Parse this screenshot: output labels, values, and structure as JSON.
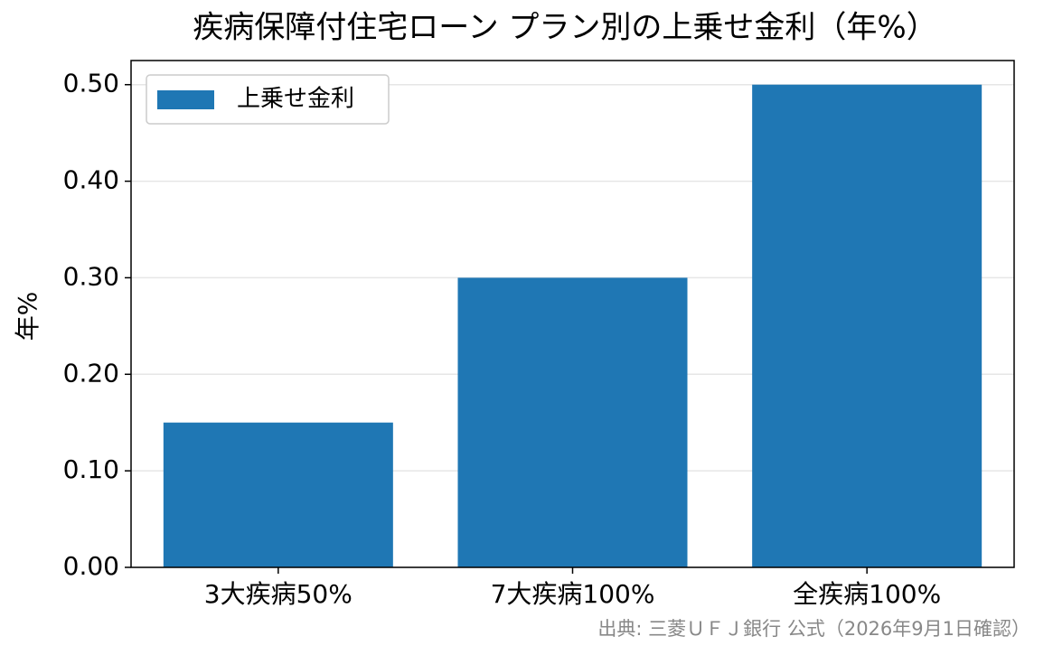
{
  "chart_data": {
    "type": "bar",
    "title": "疾病保障付住宅ローン プラン別の上乗せ金利（年%）",
    "y_label": "年%",
    "categories": [
      "3大疾病50%",
      "7大疾病100%",
      "全疾病100%"
    ],
    "series": [
      {
        "name": "上乗せ金利",
        "color": "#1f77b4",
        "values": [
          0.15,
          0.3,
          0.5
        ]
      }
    ],
    "ylim": [
      0,
      0.525
    ],
    "yticks": [
      {
        "value": 0,
        "label": "0.00"
      },
      {
        "value": 0.1,
        "label": "0.10"
      },
      {
        "value": 0.2,
        "label": "0.20"
      },
      {
        "value": 0.3,
        "label": "0.30"
      },
      {
        "value": 0.4,
        "label": "0.40"
      },
      {
        "value": 0.5,
        "label": "0.50"
      }
    ],
    "grid": true,
    "legend": "upper-left",
    "source": "出典: 三菱ＵＦＪ銀行 公式（2026年9月1日確認）"
  }
}
